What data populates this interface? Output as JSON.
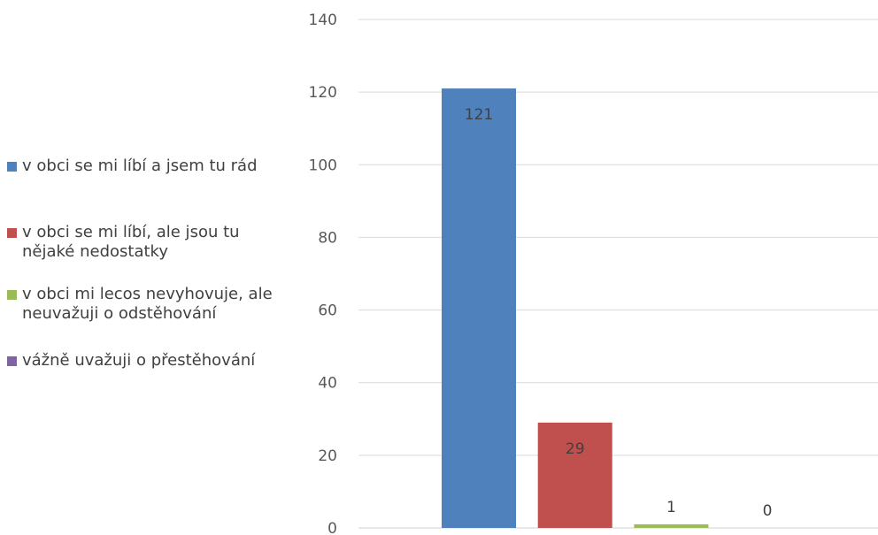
{
  "chart_data": {
    "type": "bar",
    "categories": [
      "v obci se mi líbí a jsem tu rád",
      "v obci se mi líbí, ale jsou tu nějaké nedostatky",
      "v obci mi lecos nevyhovuje, ale neuvažuji o odstěhování",
      "vážně uvažuji o přestěhování"
    ],
    "values": [
      121,
      29,
      1,
      0
    ],
    "data_labels": [
      "121",
      "29",
      "1",
      "0"
    ],
    "colors": [
      "#4f81bd",
      "#c0504d",
      "#9bbb59",
      "#8064a2"
    ],
    "ylim": [
      0,
      140
    ],
    "yticks": [
      0,
      20,
      40,
      60,
      80,
      100,
      120,
      140
    ],
    "grid": true,
    "legend_position": "left"
  }
}
